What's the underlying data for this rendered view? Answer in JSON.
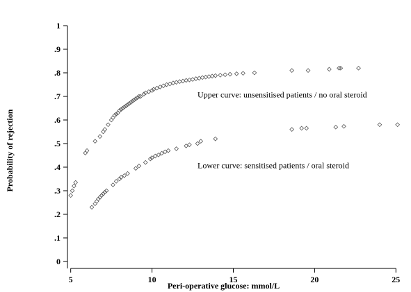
{
  "chart_data": {
    "type": "scatter",
    "title": "",
    "xlabel": "Peri-operative glucose: mmol/L",
    "ylabel": "Probability of rejection",
    "xlim": [
      4.8,
      25.5
    ],
    "ylim": [
      0,
      1.05
    ],
    "x_ticks": [
      5,
      10,
      15,
      20,
      25
    ],
    "x_tick_labels": [
      "5",
      "10",
      "15",
      "20",
      "25"
    ],
    "y_ticks": [
      0,
      0.1,
      0.2,
      0.3,
      0.4,
      0.5,
      0.6,
      0.7,
      0.8,
      0.9,
      1
    ],
    "y_tick_labels": [
      "0",
      ".1",
      ".2",
      ".3",
      ".4",
      ".5",
      ".6",
      ".7",
      ".8",
      ".9",
      "1"
    ],
    "grid": false,
    "legend": "none",
    "marker": "diamond",
    "series": [
      {
        "name": "Upper curve: unsensitised patients / no oral steroid",
        "points": [
          [
            5.9,
            0.46
          ],
          [
            6.0,
            0.47
          ],
          [
            6.5,
            0.51
          ],
          [
            6.8,
            0.53
          ],
          [
            7.0,
            0.55
          ],
          [
            7.1,
            0.56
          ],
          [
            7.3,
            0.58
          ],
          [
            7.5,
            0.6
          ],
          [
            7.6,
            0.61
          ],
          [
            7.7,
            0.62
          ],
          [
            7.8,
            0.625
          ],
          [
            7.9,
            0.63
          ],
          [
            8.0,
            0.64
          ],
          [
            8.1,
            0.645
          ],
          [
            8.2,
            0.65
          ],
          [
            8.3,
            0.655
          ],
          [
            8.4,
            0.66
          ],
          [
            8.5,
            0.665
          ],
          [
            8.6,
            0.67
          ],
          [
            8.7,
            0.675
          ],
          [
            8.8,
            0.68
          ],
          [
            8.9,
            0.685
          ],
          [
            9.0,
            0.69
          ],
          [
            9.1,
            0.695
          ],
          [
            9.2,
            0.7
          ],
          [
            9.3,
            0.7
          ],
          [
            9.5,
            0.71
          ],
          [
            9.6,
            0.715
          ],
          [
            9.8,
            0.72
          ],
          [
            10.0,
            0.725
          ],
          [
            10.1,
            0.73
          ],
          [
            10.3,
            0.735
          ],
          [
            10.5,
            0.74
          ],
          [
            10.7,
            0.745
          ],
          [
            10.9,
            0.75
          ],
          [
            11.1,
            0.753
          ],
          [
            11.3,
            0.757
          ],
          [
            11.5,
            0.76
          ],
          [
            11.7,
            0.763
          ],
          [
            11.9,
            0.765
          ],
          [
            12.1,
            0.768
          ],
          [
            12.3,
            0.77
          ],
          [
            12.5,
            0.772
          ],
          [
            12.7,
            0.775
          ],
          [
            12.9,
            0.777
          ],
          [
            13.1,
            0.78
          ],
          [
            13.3,
            0.782
          ],
          [
            13.5,
            0.784
          ],
          [
            13.7,
            0.786
          ],
          [
            13.9,
            0.788
          ],
          [
            14.2,
            0.79
          ],
          [
            14.5,
            0.792
          ],
          [
            14.8,
            0.794
          ],
          [
            15.2,
            0.796
          ],
          [
            15.6,
            0.798
          ],
          [
            16.3,
            0.8
          ],
          [
            18.6,
            0.81
          ],
          [
            19.6,
            0.81
          ],
          [
            20.9,
            0.815
          ],
          [
            21.5,
            0.82
          ],
          [
            21.6,
            0.82
          ],
          [
            22.7,
            0.82
          ]
        ]
      },
      {
        "name": "Lower curve: sensitised patients / oral steroid",
        "points": [
          [
            5.0,
            0.28
          ],
          [
            5.1,
            0.3
          ],
          [
            5.2,
            0.32
          ],
          [
            5.3,
            0.335
          ],
          [
            6.3,
            0.23
          ],
          [
            6.5,
            0.245
          ],
          [
            6.6,
            0.255
          ],
          [
            6.7,
            0.265
          ],
          [
            6.8,
            0.272
          ],
          [
            6.9,
            0.28
          ],
          [
            7.0,
            0.287
          ],
          [
            7.1,
            0.294
          ],
          [
            7.2,
            0.3
          ],
          [
            7.6,
            0.325
          ],
          [
            7.8,
            0.34
          ],
          [
            8.0,
            0.35
          ],
          [
            8.1,
            0.357
          ],
          [
            8.3,
            0.364
          ],
          [
            8.5,
            0.373
          ],
          [
            9.0,
            0.395
          ],
          [
            9.2,
            0.405
          ],
          [
            9.6,
            0.42
          ],
          [
            9.9,
            0.435
          ],
          [
            10.0,
            0.44
          ],
          [
            10.2,
            0.447
          ],
          [
            10.4,
            0.452
          ],
          [
            10.6,
            0.459
          ],
          [
            10.8,
            0.465
          ],
          [
            11.0,
            0.47
          ],
          [
            11.5,
            0.478
          ],
          [
            12.1,
            0.49
          ],
          [
            12.3,
            0.495
          ],
          [
            12.8,
            0.5
          ],
          [
            13.0,
            0.51
          ],
          [
            13.9,
            0.52
          ],
          [
            18.6,
            0.56
          ],
          [
            19.2,
            0.565
          ],
          [
            19.5,
            0.565
          ],
          [
            21.3,
            0.57
          ],
          [
            21.8,
            0.573
          ],
          [
            24.0,
            0.58
          ],
          [
            25.1,
            0.58
          ]
        ]
      }
    ],
    "annotations": [
      {
        "text": "Upper curve: unsensitised patients / no oral steroid",
        "x": 12.8,
        "y": 0.695
      },
      {
        "text": "Lower curve: sensitised patients / oral steroid",
        "x": 12.8,
        "y": 0.395
      }
    ]
  }
}
